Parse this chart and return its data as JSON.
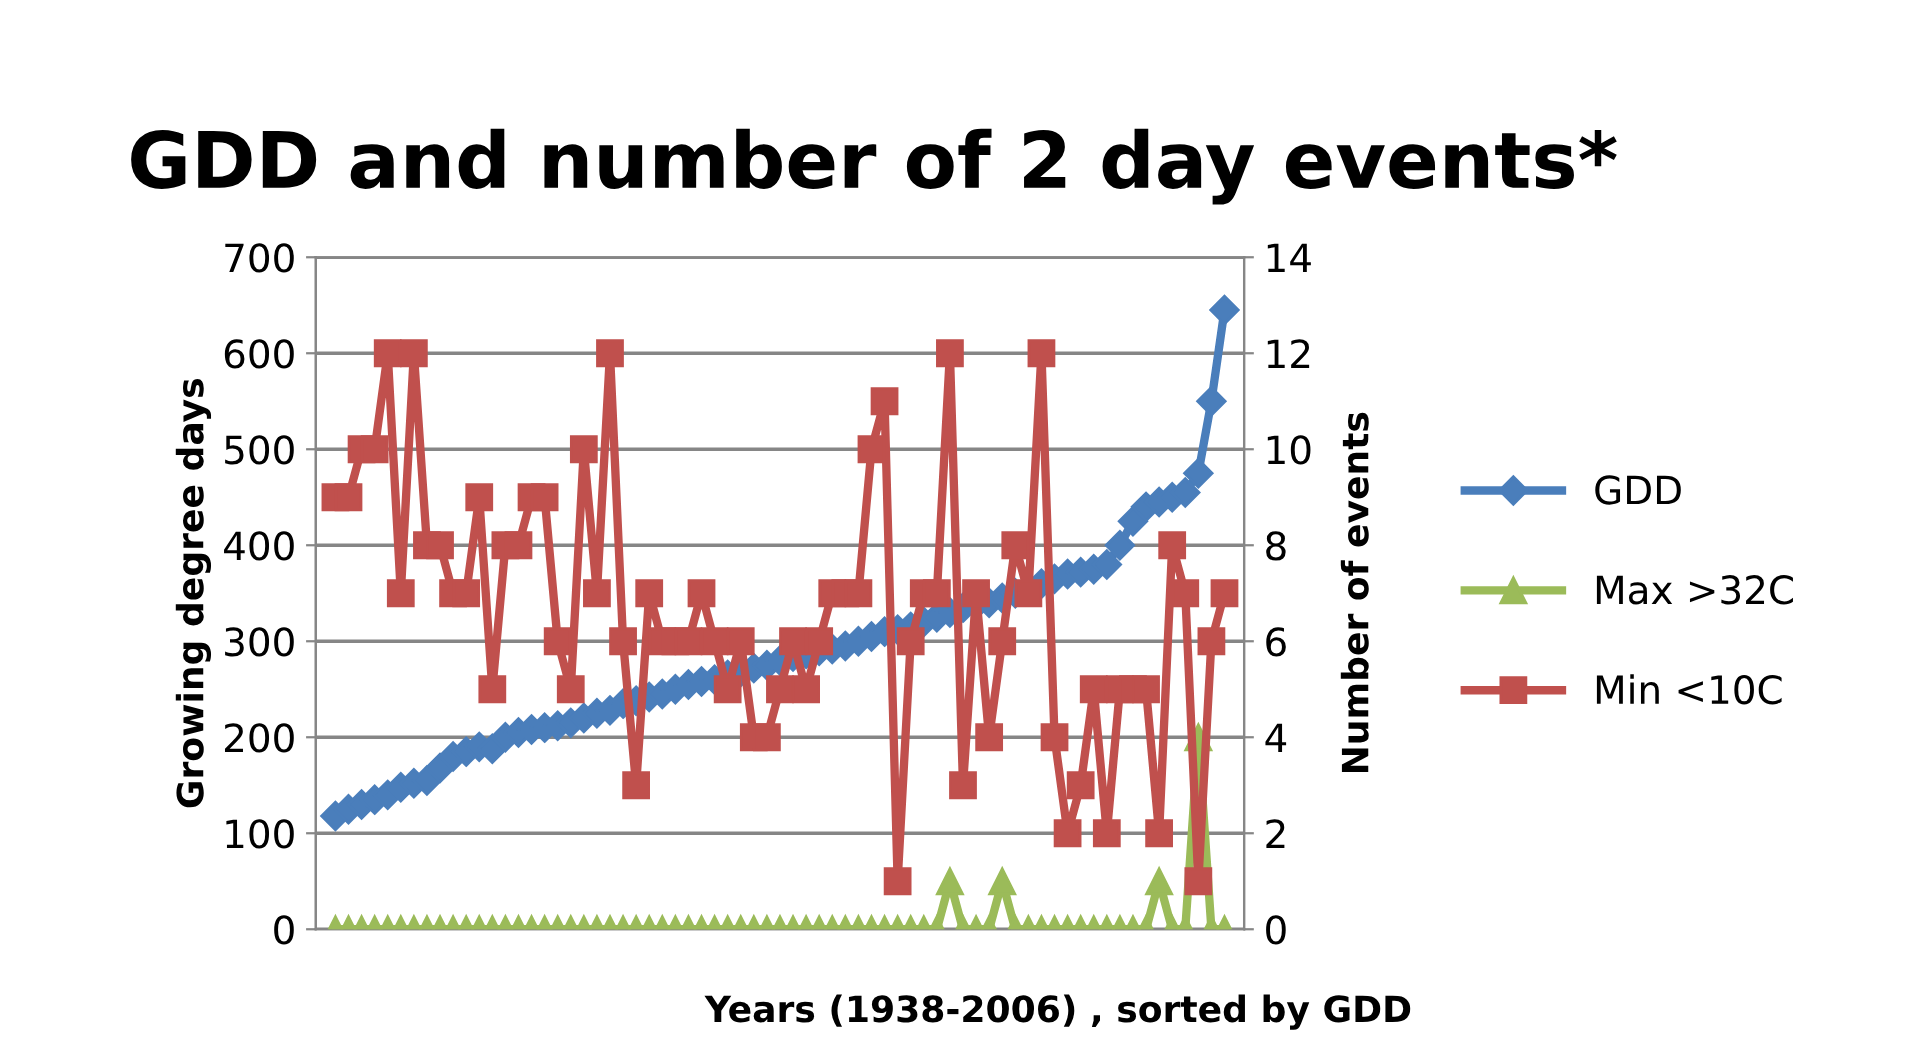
{
  "chart_data": {
    "type": "line",
    "title": "GDD and number of 2 day events*",
    "xlabel": "Years (1938-2006) , sorted by GDD",
    "ylabel": "Growing degree days",
    "y2label": "Number of events",
    "categories": [
      null,
      null,
      null,
      null,
      null,
      null,
      null,
      null,
      null,
      null,
      null,
      null,
      null,
      null,
      null,
      null,
      null,
      null,
      null,
      null,
      null,
      null,
      null,
      null,
      null,
      null,
      null,
      null,
      null,
      null,
      null,
      null,
      null,
      null,
      null,
      null,
      null,
      null,
      null,
      null,
      null,
      null,
      null,
      null,
      null,
      null,
      null,
      null,
      null,
      null,
      null,
      null,
      null,
      null,
      null,
      null,
      null,
      null,
      null,
      null,
      null,
      null,
      null,
      null,
      null,
      null,
      null,
      null,
      null
    ],
    "ylim": [
      0,
      700
    ],
    "yticks": [
      0,
      100,
      200,
      300,
      400,
      500,
      600,
      700
    ],
    "y2lim": [
      0,
      14
    ],
    "y2ticks": [
      0,
      2,
      4,
      6,
      8,
      10,
      12,
      14
    ],
    "grid": "y",
    "legend": "right",
    "series": [
      {
        "name": "GDD",
        "color": "#4a7ebb",
        "marker": "diamond",
        "values": [
          118,
          125,
          130,
          135,
          140,
          148,
          152,
          155,
          168,
          180,
          185,
          190,
          188,
          200,
          205,
          208,
          210,
          212,
          215,
          220,
          225,
          228,
          235,
          238,
          242,
          245,
          250,
          255,
          258,
          260,
          265,
          268,
          272,
          275,
          280,
          284,
          287,
          290,
          292,
          295,
          300,
          305,
          310,
          312,
          315,
          320,
          325,
          330,
          335,
          338,
          340,
          345,
          350,
          355,
          360,
          365,
          370,
          372,
          375,
          380,
          400,
          425,
          440,
          445,
          450,
          455,
          475,
          550,
          645
        ]
      },
      {
        "name": "Max >32C",
        "color": "#9bbb59",
        "marker": "triangle",
        "axis": "y2",
        "values": [
          0,
          0,
          0,
          0,
          0,
          0,
          0,
          0,
          0,
          0,
          0,
          0,
          0,
          0,
          0,
          0,
          0,
          0,
          0,
          0,
          0,
          0,
          0,
          0,
          0,
          0,
          0,
          0,
          0,
          0,
          0,
          0,
          0,
          0,
          0,
          0,
          0,
          0,
          0,
          0,
          0,
          0,
          0,
          0,
          0,
          0,
          0,
          1,
          0,
          0,
          0,
          1,
          0,
          0,
          0,
          0,
          0,
          0,
          0,
          0,
          0,
          0,
          0,
          1,
          0,
          0,
          4,
          0,
          0
        ]
      },
      {
        "name": "Min <10C",
        "color": "#c0504d",
        "marker": "square",
        "axis": "y2",
        "values": [
          9,
          9,
          10,
          10,
          12,
          7,
          12,
          8,
          8,
          7,
          7,
          9,
          5,
          8,
          8,
          9,
          9,
          6,
          5,
          10,
          7,
          12,
          6,
          3,
          7,
          6,
          6,
          6,
          7,
          6,
          5,
          6,
          4,
          4,
          5,
          6,
          5,
          6,
          7,
          7,
          7,
          10,
          11,
          1,
          6,
          7,
          7,
          12,
          3,
          7,
          4,
          6,
          8,
          7,
          12,
          4,
          2,
          3,
          5,
          2,
          5,
          5,
          5,
          2,
          8,
          7,
          1,
          6,
          7
        ]
      }
    ]
  }
}
